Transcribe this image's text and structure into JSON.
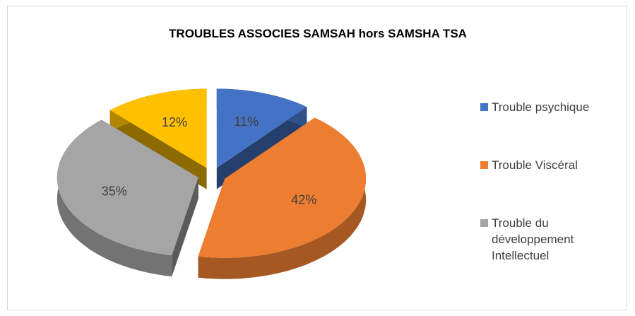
{
  "chart_data": {
    "type": "pie3d",
    "title": "TROUBLES ASSOCIES SAMSAH hors SAMSHA TSA",
    "categories": [
      "Trouble psychique",
      "Trouble Viscéral",
      "Trouble du développement Intellectuel",
      null
    ],
    "values": [
      11,
      42,
      35,
      12
    ],
    "value_labels": [
      "11%",
      "42%",
      "35%",
      "12%"
    ],
    "colors": [
      "#4472c4",
      "#ed7d31",
      "#a5a5a5",
      "#ffc000"
    ],
    "legend": "right"
  }
}
